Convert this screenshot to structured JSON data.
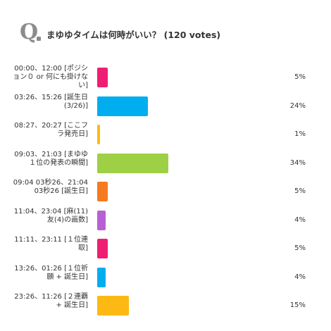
{
  "header": {
    "icon": "Q",
    "title": "まゆゆタイムは何時がいい？ (120 votes)"
  },
  "chart_data": {
    "type": "bar",
    "orientation": "horizontal",
    "title": "まゆゆタイムは何時がいい？ (120 votes)",
    "categories": [
      "00:00、12:00 [ポジション０ or 何にも掛けない]",
      "03:26、15:26 [誕生日(3/26)]",
      "08:27、20:27 [ここフラ発売日]",
      "09:03、21:03 [まゆゆ１位の発表の瞬間]",
      "09:04 03秒26、21:04 03秒26 [誕生日]",
      "11:04、23:04 [麻(11)友(4)の画数]",
      "11:11、23:11 [１位連取]",
      "13:26、01:26 [１位祈願 + 誕生日]",
      "23:26、11:26 [２連覇 + 誕生日]"
    ],
    "values": [
      5,
      24,
      1,
      34,
      5,
      4,
      5,
      4,
      15
    ],
    "value_labels": [
      "5%",
      "24%",
      "1%",
      "34%",
      "5%",
      "4%",
      "5%",
      "4%",
      "15%"
    ],
    "colors": [
      "#ee1f72",
      "#00aeef",
      "#fdb913",
      "#9ed045",
      "#f47b20",
      "#b760d4",
      "#ee1f72",
      "#00aeef",
      "#fdb913"
    ],
    "xlim": [
      0,
      100
    ],
    "unit": "%"
  }
}
